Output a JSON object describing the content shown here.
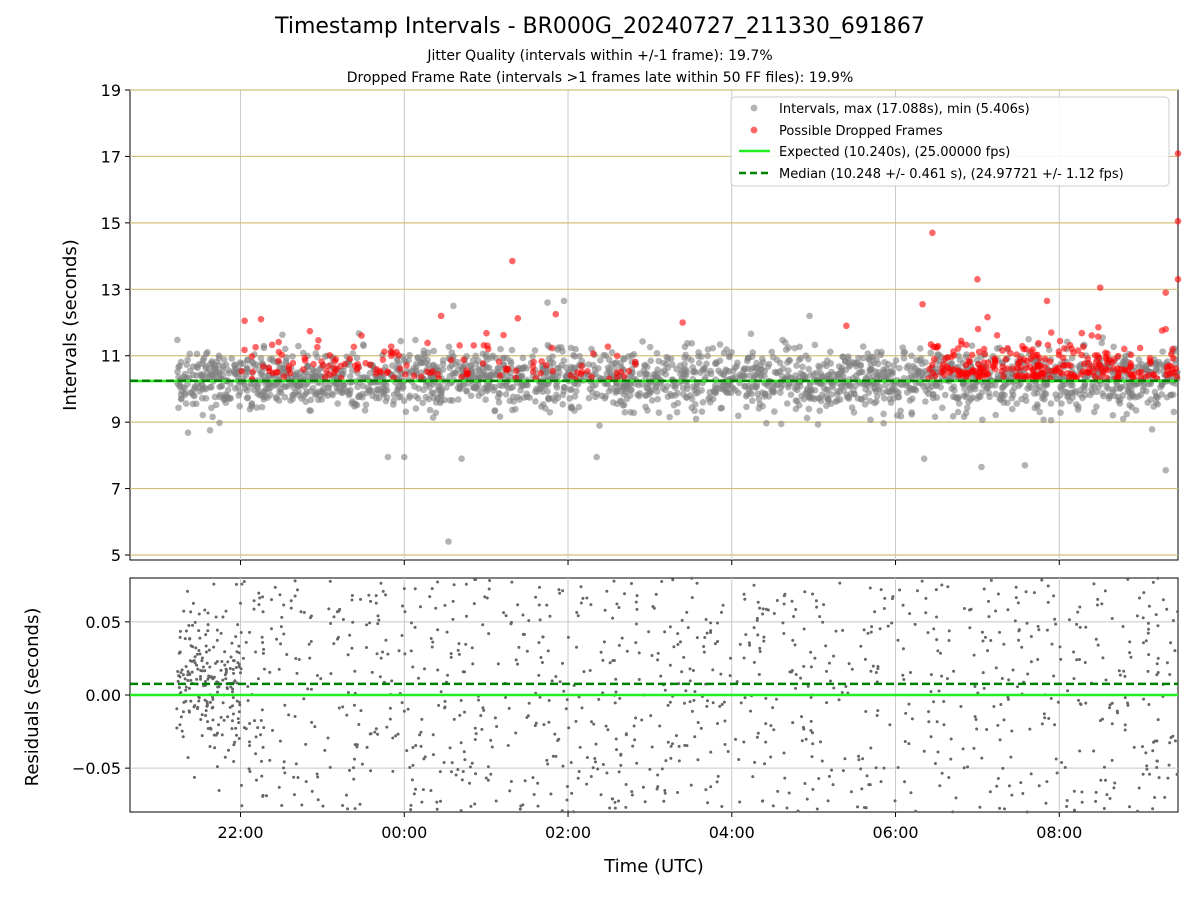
{
  "chart_data": [
    {
      "type": "scatter",
      "title": "Timestamp Intervals - BR000G_20240727_211330_691867",
      "subtitle_lines": [
        "Jitter Quality (intervals within +/-1 frame): 19.7%",
        "Dropped Frame Rate (intervals >1 frames late within 50 FF files): 19.9%"
      ],
      "xlabel": "",
      "ylabel": "Intervals (seconds)",
      "x_range_hours": [
        -3.35,
        9.45
      ],
      "ylim": [
        4.85,
        19
      ],
      "yticks": [
        5,
        7,
        9,
        11,
        13,
        15,
        17,
        19
      ],
      "xticks": [
        {
          "hour": -2,
          "label": "22:00"
        },
        {
          "hour": 0,
          "label": "00:00"
        },
        {
          "hour": 2,
          "label": "02:00"
        },
        {
          "hour": 4,
          "label": "04:00"
        },
        {
          "hour": 6,
          "label": "06:00"
        },
        {
          "hour": 8,
          "label": "08:00"
        }
      ],
      "grid": true,
      "horizontal_reference_lines": [
        5,
        7,
        9,
        11,
        13,
        15,
        17,
        19
      ],
      "legend_position": "top-right",
      "series": [
        {
          "name": "Intervals, max (17.088s), min (5.406s)",
          "kind": "scatter",
          "color": "#808080",
          "opacity": 0.6,
          "x_start": -2.78,
          "x_end": 9.45,
          "count": 2300,
          "center": 10.25,
          "spread": 0.45,
          "outliers": [
            {
              "x": 0.54,
              "y": 5.406
            },
            {
              "x": 0.6,
              "y": 12.5
            },
            {
              "x": 1.75,
              "y": 12.6
            },
            {
              "x": 1.95,
              "y": 12.65
            },
            {
              "x": 0.0,
              "y": 7.95
            },
            {
              "x": -0.2,
              "y": 7.95
            },
            {
              "x": 0.7,
              "y": 7.9
            },
            {
              "x": 2.35,
              "y": 7.95
            },
            {
              "x": 4.95,
              "y": 12.2
            },
            {
              "x": 7.05,
              "y": 7.65
            },
            {
              "x": 7.58,
              "y": 7.7
            },
            {
              "x": 9.3,
              "y": 7.55
            },
            {
              "x": 6.35,
              "y": 7.9
            }
          ]
        },
        {
          "name": "Possible Dropped Frames",
          "kind": "scatter",
          "color": "#ff0000",
          "opacity": 0.6,
          "clusters": [
            {
              "x0": -2.0,
              "x1": 2.9,
              "n": 130
            },
            {
              "x0": 6.4,
              "x1": 9.45,
              "n": 260
            }
          ],
          "points": [
            {
              "x": 1.32,
              "y": 13.85
            },
            {
              "x": 6.45,
              "y": 14.7
            },
            {
              "x": 6.33,
              "y": 12.55
            },
            {
              "x": 7.0,
              "y": 13.3
            },
            {
              "x": 8.5,
              "y": 13.05
            },
            {
              "x": 7.85,
              "y": 12.65
            },
            {
              "x": 9.3,
              "y": 12.9
            },
            {
              "x": 9.45,
              "y": 17.088
            },
            {
              "x": 9.45,
              "y": 15.05
            },
            {
              "x": 9.45,
              "y": 13.3
            },
            {
              "x": 0.45,
              "y": 12.2
            },
            {
              "x": 1.85,
              "y": 12.25
            },
            {
              "x": 3.4,
              "y": 12.0
            },
            {
              "x": 5.4,
              "y": 11.9
            },
            {
              "x": -1.95,
              "y": 12.05
            },
            {
              "x": -1.75,
              "y": 12.1
            },
            {
              "x": 9.3,
              "y": 11.8
            }
          ]
        },
        {
          "name": "Expected (10.240s), (25.00000 fps)",
          "kind": "hline",
          "y": 10.24,
          "color": "#22ee22",
          "style": "solid"
        },
        {
          "name": "Median (10.248 +/- 0.461 s), (24.97721 +/- 1.12 fps)",
          "kind": "hline",
          "y": 10.248,
          "color": "#008000",
          "style": "dashed"
        }
      ]
    },
    {
      "type": "scatter",
      "title": "",
      "xlabel": "Time (UTC)",
      "ylabel": "Residuals (seconds)",
      "x_range_hours": [
        -3.35,
        9.45
      ],
      "ylim": [
        -0.08,
        0.08
      ],
      "yticks": [
        -0.05,
        0.0,
        0.05
      ],
      "ytick_labels": [
        "−0.05",
        "0.00",
        "0.05"
      ],
      "xticks": [
        {
          "hour": -2,
          "label": "22:00"
        },
        {
          "hour": 0,
          "label": "00:00"
        },
        {
          "hour": 2,
          "label": "02:00"
        },
        {
          "hour": 4,
          "label": "04:00"
        },
        {
          "hour": 6,
          "label": "06:00"
        },
        {
          "hour": 8,
          "label": "08:00"
        }
      ],
      "grid": true,
      "series": [
        {
          "name": "",
          "kind": "scatter",
          "color": "#666666",
          "dense_region": {
            "x0": -2.78,
            "x1": -2.0,
            "n": 220,
            "center": 0.01,
            "spread": 0.025
          },
          "sparse_region": {
            "x0": -2.0,
            "x1": 9.45,
            "n": 1050,
            "range": [
              -0.08,
              0.08
            ]
          }
        },
        {
          "name": "",
          "kind": "hline",
          "y": 0.0,
          "color": "#22ee22",
          "style": "solid"
        },
        {
          "name": "",
          "kind": "hline",
          "y": 0.0076,
          "color": "#008000",
          "style": "dashed"
        }
      ]
    }
  ]
}
